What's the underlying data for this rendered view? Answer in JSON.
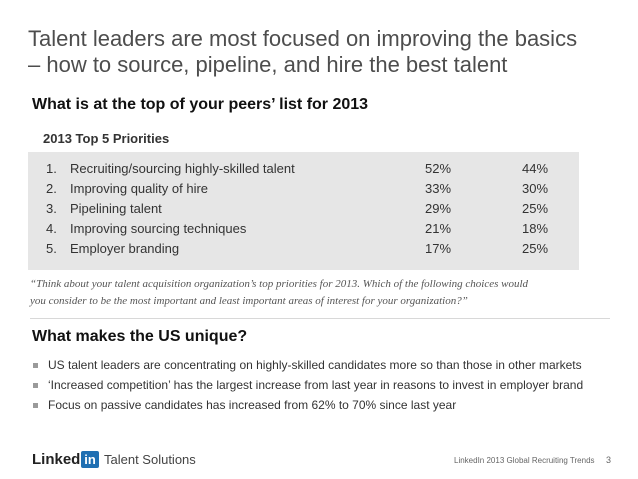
{
  "title_line1": "Talent leaders are most focused on improving the basics",
  "title_line2": "– how to source, pipeline, and hire the best talent",
  "question": "What is at the top of your peers’ list for 2013",
  "table": {
    "heading": "2013 Top 5 Priorities",
    "us_icon": "us-flag-icon",
    "global_icon": "world-map-icon",
    "rows": [
      {
        "num": "1.",
        "label": "Recruiting/sourcing highly-skilled talent",
        "us": "52%",
        "global": "44%"
      },
      {
        "num": "2.",
        "label": "Improving quality of hire",
        "us": "33%",
        "global": "30%"
      },
      {
        "num": "3.",
        "label": "Pipelining talent",
        "us": "29%",
        "global": "25%"
      },
      {
        "num": "4.",
        "label": "Improving sourcing techniques",
        "us": "21%",
        "global": "18%"
      },
      {
        "num": "5.",
        "label": "Employer branding",
        "us": "17%",
        "global": "25%"
      }
    ]
  },
  "survey_question_line1": "“Think about your talent acquisition organization’s top priorities for 2013. Which of the following choices would",
  "survey_question_line2": "you consider to be the most important and least important areas of interest for your organization?”",
  "subheading": "What makes the US unique?",
  "bullets": [
    "US talent leaders are concentrating on highly-skilled candidates more so than those in other markets",
    "‘Increased competition’ has the largest increase from last year in reasons to invest in employer brand",
    "Focus on passive candidates has increased from 62% to 70% since last year"
  ],
  "logo": {
    "text": "Linked",
    "in": "in",
    "sub": "Talent Solutions"
  },
  "footer": "LinkedIn 2013 Global Recruiting Trends",
  "page_number": "3",
  "colors": {
    "accent": "#1f6fb2",
    "table_bg": "#e6e6e6"
  }
}
